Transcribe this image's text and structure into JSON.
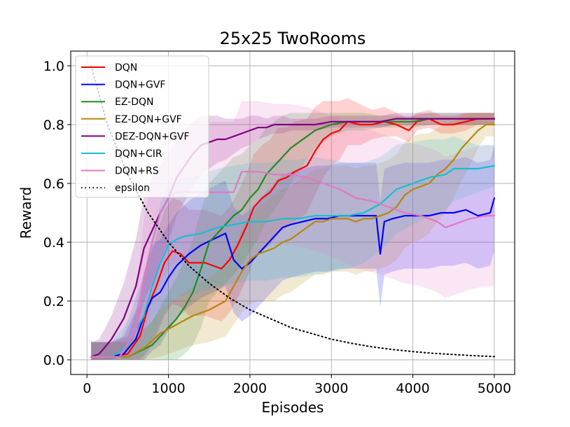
{
  "chart_data": {
    "type": "line",
    "title": "25x25 TwoRooms",
    "xlabel": "Episodes",
    "ylabel": "Reward",
    "xlim": [
      -200,
      5250
    ],
    "ylim": [
      -0.05,
      1.05
    ],
    "x_ticks": [
      0,
      1000,
      2000,
      3000,
      4000,
      5000
    ],
    "y_ticks": [
      0.0,
      0.2,
      0.4,
      0.6,
      0.8,
      1.0
    ],
    "x_tick_labels": [
      "0",
      "1000",
      "2000",
      "3000",
      "4000",
      "5000"
    ],
    "y_tick_labels": [
      "0.0",
      "0.2",
      "0.4",
      "0.6",
      "0.8",
      "1.0"
    ],
    "grid": true,
    "legend_position": "top-left",
    "series": [
      {
        "name": "DQN",
        "color": "#ff0000",
        "style": "solid",
        "x": [
          50,
          300,
          500,
          650,
          750,
          850,
          950,
          1050,
          1150,
          1250,
          1350,
          1450,
          1550,
          1650,
          1750,
          1850,
          1950,
          2050,
          2150,
          2250,
          2350,
          2450,
          2550,
          2700,
          2800,
          2900,
          3000,
          3100,
          3200,
          3350,
          3500,
          3650,
          3800,
          3950,
          4050,
          4200,
          4350,
          4500,
          4650,
          4800,
          5000
        ],
        "y": [
          0.01,
          0.01,
          0.02,
          0.08,
          0.18,
          0.25,
          0.33,
          0.37,
          0.36,
          0.33,
          0.33,
          0.33,
          0.32,
          0.31,
          0.34,
          0.39,
          0.45,
          0.52,
          0.55,
          0.57,
          0.61,
          0.62,
          0.64,
          0.66,
          0.71,
          0.75,
          0.77,
          0.78,
          0.81,
          0.8,
          0.8,
          0.81,
          0.8,
          0.78,
          0.81,
          0.82,
          0.8,
          0.8,
          0.81,
          0.82,
          0.82
        ],
        "band": [
          0.05,
          0.05,
          0.06,
          0.12,
          0.15,
          0.17,
          0.18,
          0.18,
          0.18,
          0.18,
          0.18,
          0.18,
          0.18,
          0.18,
          0.18,
          0.18,
          0.18,
          0.18,
          0.18,
          0.18,
          0.18,
          0.17,
          0.17,
          0.16,
          0.15,
          0.13,
          0.11,
          0.1,
          0.08,
          0.07,
          0.05,
          0.05,
          0.04,
          0.04,
          0.03,
          0.03,
          0.03,
          0.03,
          0.03,
          0.02,
          0.02
        ]
      },
      {
        "name": "DQN+GVF",
        "color": "#0000ff",
        "style": "solid",
        "x": [
          50,
          300,
          450,
          600,
          700,
          800,
          900,
          1000,
          1100,
          1250,
          1400,
          1550,
          1700,
          1800,
          1900,
          2000,
          2100,
          2200,
          2300,
          2400,
          2500,
          2650,
          2800,
          2950,
          3100,
          3250,
          3400,
          3550,
          3600,
          3650,
          3750,
          3900,
          4050,
          4200,
          4350,
          4500,
          4650,
          4800,
          4950,
          5000
        ],
        "y": [
          0.01,
          0.01,
          0.02,
          0.07,
          0.15,
          0.21,
          0.23,
          0.28,
          0.32,
          0.36,
          0.39,
          0.41,
          0.43,
          0.34,
          0.31,
          0.33,
          0.36,
          0.39,
          0.42,
          0.45,
          0.46,
          0.47,
          0.48,
          0.48,
          0.49,
          0.49,
          0.49,
          0.49,
          0.36,
          0.47,
          0.48,
          0.49,
          0.49,
          0.49,
          0.5,
          0.5,
          0.51,
          0.49,
          0.5,
          0.55
        ],
        "band": [
          0.05,
          0.05,
          0.06,
          0.1,
          0.15,
          0.18,
          0.18,
          0.18,
          0.18,
          0.18,
          0.18,
          0.18,
          0.18,
          0.18,
          0.18,
          0.18,
          0.18,
          0.18,
          0.18,
          0.18,
          0.18,
          0.18,
          0.18,
          0.18,
          0.18,
          0.18,
          0.18,
          0.18,
          0.18,
          0.18,
          0.18,
          0.18,
          0.18,
          0.18,
          0.18,
          0.18,
          0.18,
          0.18,
          0.18,
          0.18
        ]
      },
      {
        "name": "EZ-DQN",
        "color": "#228b22",
        "style": "solid",
        "x": [
          50,
          500,
          800,
          900,
          1000,
          1100,
          1200,
          1300,
          1400,
          1500,
          1600,
          1700,
          1800,
          1900,
          2000,
          2100,
          2200,
          2300,
          2400,
          2500,
          2600,
          2700,
          2800,
          2900,
          3000,
          3200,
          3400,
          3600,
          3800,
          4000,
          4200,
          4400,
          4600,
          4800,
          5000
        ],
        "y": [
          0.01,
          0.01,
          0.05,
          0.08,
          0.11,
          0.14,
          0.18,
          0.23,
          0.31,
          0.4,
          0.43,
          0.46,
          0.49,
          0.51,
          0.55,
          0.58,
          0.63,
          0.66,
          0.69,
          0.72,
          0.74,
          0.76,
          0.78,
          0.79,
          0.8,
          0.81,
          0.81,
          0.81,
          0.81,
          0.81,
          0.82,
          0.82,
          0.82,
          0.82,
          0.82
        ],
        "band": [
          0.05,
          0.05,
          0.08,
          0.1,
          0.12,
          0.14,
          0.16,
          0.18,
          0.2,
          0.2,
          0.2,
          0.2,
          0.2,
          0.19,
          0.18,
          0.17,
          0.16,
          0.15,
          0.14,
          0.12,
          0.1,
          0.08,
          0.06,
          0.05,
          0.04,
          0.03,
          0.03,
          0.02,
          0.02,
          0.02,
          0.02,
          0.02,
          0.02,
          0.02,
          0.02
        ]
      },
      {
        "name": "EZ-DQN+GVF",
        "color": "#b8860b",
        "style": "solid",
        "x": [
          50,
          500,
          700,
          900,
          1100,
          1300,
          1500,
          1700,
          1800,
          1900,
          2000,
          2100,
          2200,
          2300,
          2400,
          2500,
          2600,
          2700,
          2800,
          2900,
          3000,
          3100,
          3200,
          3300,
          3400,
          3500,
          3600,
          3700,
          3800,
          3900,
          4000,
          4100,
          4200,
          4300,
          4400,
          4500,
          4600,
          4700,
          4800,
          4900,
          5000
        ],
        "y": [
          0.01,
          0.01,
          0.04,
          0.09,
          0.12,
          0.15,
          0.17,
          0.2,
          0.25,
          0.3,
          0.34,
          0.36,
          0.37,
          0.38,
          0.4,
          0.41,
          0.43,
          0.45,
          0.47,
          0.47,
          0.48,
          0.48,
          0.48,
          0.47,
          0.48,
          0.48,
          0.49,
          0.5,
          0.52,
          0.56,
          0.58,
          0.59,
          0.6,
          0.63,
          0.65,
          0.68,
          0.72,
          0.75,
          0.78,
          0.8,
          0.8
        ],
        "band": [
          0.05,
          0.05,
          0.06,
          0.08,
          0.09,
          0.1,
          0.11,
          0.12,
          0.13,
          0.14,
          0.15,
          0.16,
          0.17,
          0.18,
          0.18,
          0.18,
          0.18,
          0.18,
          0.18,
          0.18,
          0.18,
          0.18,
          0.18,
          0.18,
          0.18,
          0.18,
          0.18,
          0.18,
          0.18,
          0.18,
          0.18,
          0.18,
          0.17,
          0.16,
          0.15,
          0.13,
          0.11,
          0.09,
          0.06,
          0.04,
          0.04
        ]
      },
      {
        "name": "DEZ-DQN+GVF",
        "color": "#800080",
        "style": "solid",
        "x": [
          50,
          150,
          300,
          450,
          600,
          700,
          800,
          900,
          1000,
          1100,
          1200,
          1300,
          1400,
          1500,
          1600,
          1700,
          1800,
          1900,
          2000,
          2100,
          2200,
          2300,
          2400,
          2500,
          2600,
          2700,
          2800,
          3000,
          3200,
          3400,
          3600,
          3800,
          4000,
          4200,
          4400,
          4600,
          4800,
          5000
        ],
        "y": [
          0.01,
          0.02,
          0.07,
          0.14,
          0.25,
          0.38,
          0.44,
          0.5,
          0.55,
          0.62,
          0.66,
          0.7,
          0.73,
          0.74,
          0.75,
          0.75,
          0.76,
          0.77,
          0.78,
          0.79,
          0.79,
          0.8,
          0.8,
          0.8,
          0.8,
          0.8,
          0.8,
          0.81,
          0.81,
          0.81,
          0.81,
          0.82,
          0.82,
          0.82,
          0.82,
          0.82,
          0.82,
          0.82
        ],
        "band": [
          0.05,
          0.05,
          0.08,
          0.12,
          0.16,
          0.18,
          0.18,
          0.16,
          0.15,
          0.13,
          0.12,
          0.11,
          0.1,
          0.09,
          0.08,
          0.07,
          0.06,
          0.05,
          0.05,
          0.04,
          0.03,
          0.03,
          0.03,
          0.02,
          0.02,
          0.02,
          0.02,
          0.02,
          0.02,
          0.02,
          0.02,
          0.02,
          0.02,
          0.02,
          0.02,
          0.02,
          0.02,
          0.02
        ]
      },
      {
        "name": "DQN+CIR",
        "color": "#17becf",
        "style": "solid",
        "x": [
          50,
          300,
          500,
          700,
          800,
          900,
          1000,
          1100,
          1200,
          1400,
          1600,
          1800,
          2000,
          2200,
          2400,
          2600,
          2800,
          3000,
          3200,
          3400,
          3600,
          3800,
          4000,
          4200,
          4400,
          4500,
          4600,
          4800,
          5000
        ],
        "y": [
          0.01,
          0.01,
          0.05,
          0.15,
          0.25,
          0.33,
          0.39,
          0.41,
          0.42,
          0.43,
          0.45,
          0.46,
          0.47,
          0.47,
          0.48,
          0.48,
          0.49,
          0.49,
          0.49,
          0.5,
          0.53,
          0.58,
          0.6,
          0.62,
          0.63,
          0.65,
          0.65,
          0.65,
          0.66
        ],
        "band": [
          0.05,
          0.05,
          0.08,
          0.14,
          0.18,
          0.2,
          0.2,
          0.2,
          0.2,
          0.2,
          0.2,
          0.2,
          0.2,
          0.2,
          0.2,
          0.2,
          0.2,
          0.19,
          0.18,
          0.17,
          0.16,
          0.15,
          0.14,
          0.13,
          0.12,
          0.11,
          0.1,
          0.08,
          0.07
        ]
      },
      {
        "name": "DQN+RS",
        "color": "#e377c2",
        "style": "solid",
        "x": [
          50,
          400,
          600,
          700,
          800,
          900,
          1000,
          1100,
          1300,
          1500,
          1700,
          1800,
          1900,
          2100,
          2300,
          2500,
          2700,
          2900,
          3100,
          3300,
          3500,
          3700,
          3900,
          4100,
          4300,
          4400,
          4500,
          4700,
          4900,
          5000
        ],
        "y": [
          0.01,
          0.01,
          0.1,
          0.28,
          0.4,
          0.5,
          0.55,
          0.57,
          0.57,
          0.57,
          0.57,
          0.57,
          0.64,
          0.64,
          0.63,
          0.63,
          0.62,
          0.6,
          0.58,
          0.55,
          0.54,
          0.52,
          0.5,
          0.49,
          0.47,
          0.45,
          0.46,
          0.48,
          0.49,
          0.49
        ],
        "band": [
          0.05,
          0.05,
          0.12,
          0.2,
          0.22,
          0.24,
          0.24,
          0.24,
          0.24,
          0.24,
          0.24,
          0.24,
          0.24,
          0.24,
          0.24,
          0.24,
          0.24,
          0.24,
          0.24,
          0.24,
          0.24,
          0.24,
          0.24,
          0.24,
          0.24,
          0.24,
          0.24,
          0.24,
          0.24,
          0.24
        ]
      },
      {
        "name": "epsilon",
        "color": "#000000",
        "style": "dotted",
        "x": [
          50,
          250,
          500,
          750,
          1000,
          1250,
          1500,
          1750,
          2000,
          2250,
          2500,
          2750,
          3000,
          3250,
          3500,
          3750,
          4000,
          4250,
          4500,
          4750,
          5000
        ],
        "y": [
          1.0,
          0.8,
          0.63,
          0.5,
          0.4,
          0.32,
          0.26,
          0.21,
          0.17,
          0.14,
          0.11,
          0.09,
          0.07,
          0.056,
          0.044,
          0.035,
          0.028,
          0.022,
          0.018,
          0.014,
          0.011
        ],
        "band": []
      }
    ]
  }
}
